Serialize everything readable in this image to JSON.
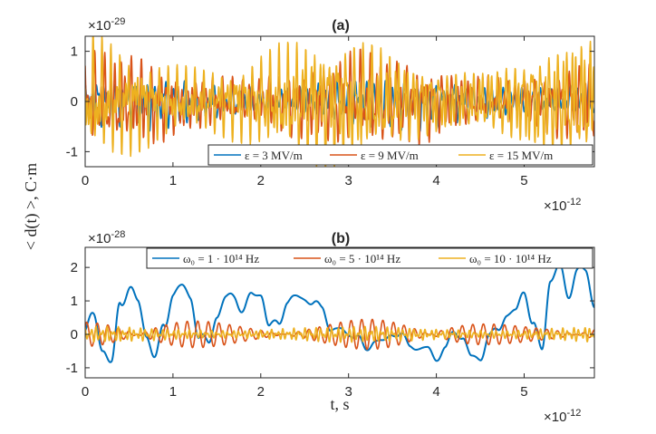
{
  "chart_data": [
    {
      "type": "line",
      "title": "(a)",
      "exponent_label": {
        "base": "×10",
        "power": "-29"
      },
      "x_exponent_label": {
        "base": "×10",
        "power": "-12"
      },
      "xlim": [
        0,
        5.8
      ],
      "ylim": [
        -1.3,
        1.3
      ],
      "xticks": [
        0,
        1,
        2,
        3,
        4,
        5
      ],
      "yticks": [
        -1,
        0,
        1
      ],
      "xticklabels": [
        "0",
        "1",
        "2",
        "3",
        "4",
        "5"
      ],
      "yticklabels": [
        "-1",
        "0",
        "1"
      ],
      "legend_position": "bottom-right",
      "series": [
        {
          "name": "ε = 3 MV/m",
          "color": "#0072BD",
          "amplitude": 0.45,
          "freqs": [
            9.1,
            14.3,
            23.7
          ],
          "phase": 0.3
        },
        {
          "name": "ε = 9 MV/m",
          "color": "#D95319",
          "amplitude": 0.8,
          "freqs": [
            9.6,
            17.2,
            26.1
          ],
          "phase": 1.1
        },
        {
          "name": "ε = 15 MV/m",
          "color": "#EDB120",
          "amplitude": 1.1,
          "freqs": [
            10.4,
            19.8,
            29.3
          ],
          "phase": 2.0
        }
      ]
    },
    {
      "type": "line",
      "title": "(b)",
      "exponent_label": {
        "base": "×10",
        "power": "-28"
      },
      "x_exponent_label": {
        "base": "×10",
        "power": "-12"
      },
      "xlim": [
        0,
        5.8
      ],
      "ylim": [
        -1.3,
        2.6
      ],
      "xticks": [
        0,
        1,
        2,
        3,
        4,
        5
      ],
      "yticks": [
        -1,
        0,
        1,
        2
      ],
      "xticklabels": [
        "0",
        "1",
        "2",
        "3",
        "4",
        "5"
      ],
      "yticklabels": [
        "-1",
        "0",
        "1",
        "2"
      ],
      "legend_position": "top",
      "series": [
        {
          "name": "ω₀ = 1 · 10¹⁴ Hz",
          "color": "#0072BD",
          "x": [
            0,
            0.1,
            0.2,
            0.3,
            0.4,
            0.5,
            0.6,
            0.7,
            0.8,
            0.9,
            1.0,
            1.1,
            1.2,
            1.3,
            1.4,
            1.5,
            1.6,
            1.7,
            1.8,
            1.9,
            2.0,
            2.1,
            2.2,
            2.3,
            2.4,
            2.5,
            2.6,
            2.7,
            2.8,
            2.9,
            3.0,
            3.1,
            3.2,
            3.3,
            3.4,
            3.5,
            3.6,
            3.7,
            3.8,
            3.9,
            4.0,
            4.1,
            4.2,
            4.3,
            4.4,
            4.5,
            4.6,
            4.7,
            4.8,
            4.9,
            5.0,
            5.1,
            5.2,
            5.3,
            5.4,
            5.5,
            5.6,
            5.7,
            5.8
          ],
          "y": [
            0.1,
            0.6,
            -0.5,
            -0.8,
            0.9,
            1.4,
            1.0,
            -0.1,
            -0.6,
            0.2,
            1.2,
            1.5,
            1.0,
            0.0,
            -0.3,
            0.5,
            1.2,
            1.0,
            0.8,
            1.2,
            1.1,
            0.4,
            0.2,
            1.0,
            1.2,
            0.9,
            1.1,
            0.7,
            0.1,
            0.3,
            -0.2,
            0.1,
            -0.5,
            -0.3,
            0.0,
            -0.2,
            0.1,
            -0.3,
            -0.6,
            -0.2,
            -0.9,
            -0.4,
            0.2,
            -0.3,
            -0.5,
            -0.8,
            -0.1,
            0.3,
            0.4,
            0.8,
            1.3,
            0.2,
            -0.3,
            1.5,
            2.1,
            1.2,
            1.8,
            2.0,
            0.8
          ],
          "jitter": 0.18
        },
        {
          "name": "ω₀ = 5 · 10¹⁴ Hz",
          "color": "#D95319",
          "amplitude": 0.38,
          "freqs": [
            8.0,
            8.6
          ],
          "phase": 0.2
        },
        {
          "name": "ω₀ = 10 · 10¹⁴ Hz",
          "color": "#EDB120",
          "amplitude": 0.18,
          "freqs": [
            16.0,
            23.5
          ],
          "phase": 1.4
        }
      ]
    }
  ],
  "shared_ylabel": "< d(t) >, C·m",
  "xlabel": "t, s"
}
